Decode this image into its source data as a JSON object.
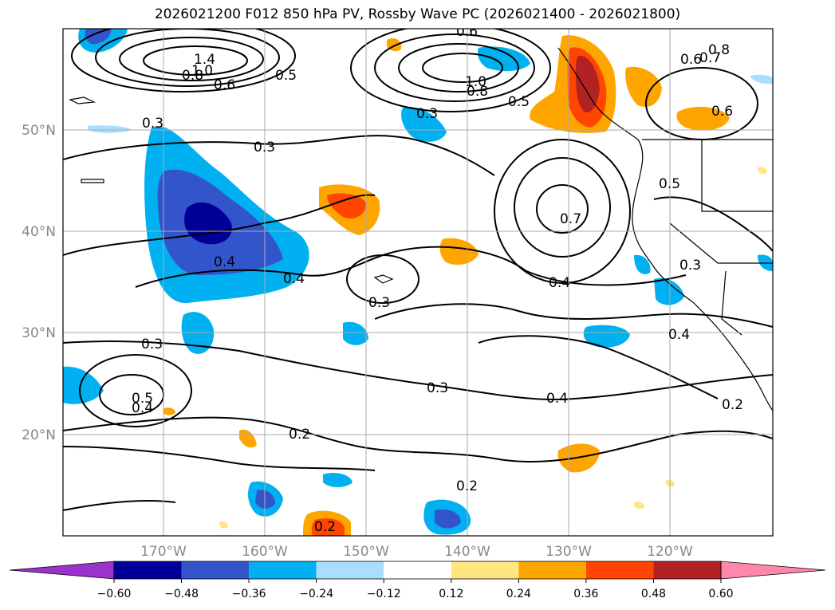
{
  "title": "2026021200 F012 850 hPa PV, Rossby Wave PC (2026021400 - 2026021800)",
  "axes": {
    "lat_labels": [
      "50°N",
      "40°N",
      "30°N",
      "20°N"
    ],
    "lon_labels": [
      "170°W",
      "160°W",
      "150°W",
      "140°W",
      "130°W",
      "120°W"
    ]
  },
  "colorbar": {
    "ticks": [
      "−0.60",
      "−0.48",
      "−0.36",
      "−0.24",
      "−0.12",
      "0.12",
      "0.24",
      "0.36",
      "0.48",
      "0.60"
    ],
    "colors": [
      "#9933cc",
      "#000099",
      "#3355cc",
      "#00b0f0",
      "#aadeff",
      "#ffffff",
      "#ffe680",
      "#ffa500",
      "#ff4500",
      "#b22222",
      "#ff88aa"
    ]
  },
  "contour_labels": [
    "0.3",
    "0.3",
    "0.4",
    "0.4",
    "0.3",
    "0.3",
    "0.5",
    "0.4",
    "0.2",
    "0.2",
    "0.3",
    "0.4",
    "0.4",
    "0.7",
    "0.5",
    "0.3",
    "0.4",
    "0.2",
    "0.3",
    "1.0",
    "0.8",
    "0.5",
    "0.6",
    "0.8",
    "0.7",
    "0.6",
    "0.6",
    "1.4",
    "1.0",
    "0.8",
    "0.6",
    "0.5",
    "0.2"
  ]
}
